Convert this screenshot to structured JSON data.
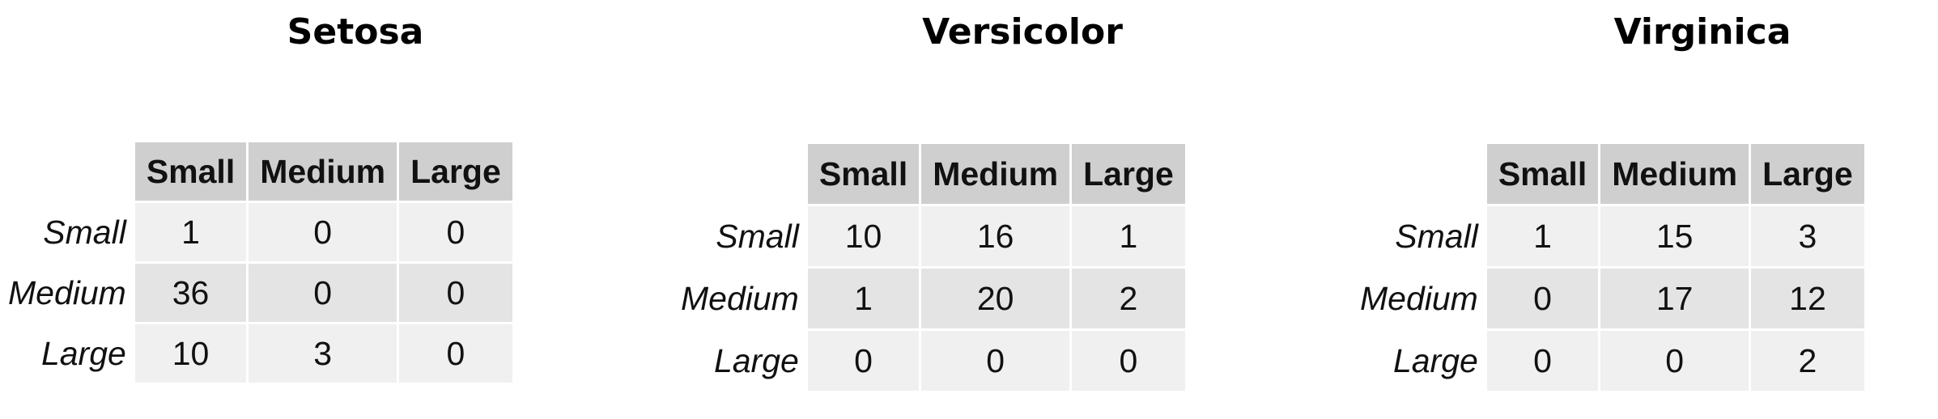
{
  "chart_data": [
    {
      "type": "table",
      "title": "Setosa",
      "columns": [
        "Small",
        "Medium",
        "Large"
      ],
      "rows": [
        {
          "label": "Small",
          "values": [
            1,
            0,
            0
          ]
        },
        {
          "label": "Medium",
          "values": [
            36,
            0,
            0
          ]
        },
        {
          "label": "Large",
          "values": [
            10,
            3,
            0
          ]
        }
      ]
    },
    {
      "type": "table",
      "title": "Versicolor",
      "columns": [
        "Small",
        "Medium",
        "Large"
      ],
      "rows": [
        {
          "label": "Small",
          "values": [
            10,
            16,
            1
          ]
        },
        {
          "label": "Medium",
          "values": [
            1,
            20,
            2
          ]
        },
        {
          "label": "Large",
          "values": [
            0,
            0,
            0
          ]
        }
      ]
    },
    {
      "type": "table",
      "title": "Virginica",
      "columns": [
        "Small",
        "Medium",
        "Large"
      ],
      "rows": [
        {
          "label": "Small",
          "values": [
            1,
            15,
            3
          ]
        },
        {
          "label": "Medium",
          "values": [
            0,
            17,
            12
          ]
        },
        {
          "label": "Large",
          "values": [
            0,
            0,
            2
          ]
        }
      ]
    }
  ]
}
